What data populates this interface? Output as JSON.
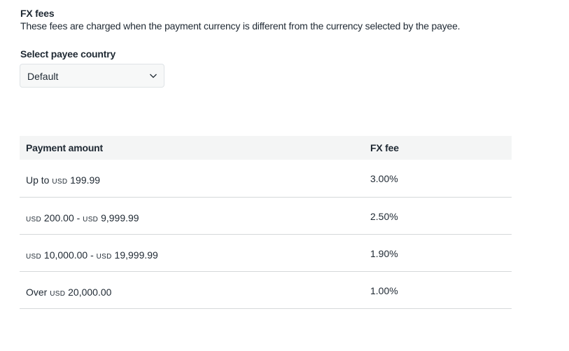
{
  "header": {
    "title": "FX fees",
    "description": "These fees are charged when the payment currency is different from the currency selected by the payee."
  },
  "country_select": {
    "label": "Select payee country",
    "value": "Default",
    "icon": "chevron-down-icon"
  },
  "table": {
    "columns": [
      "Payment amount",
      "FX fee"
    ],
    "rows": [
      {
        "amount": [
          {
            "t": "Up to "
          },
          {
            "t": "USD",
            "s": true
          },
          {
            "t": " 199.99"
          }
        ],
        "fee": "3.00%"
      },
      {
        "amount": [
          {
            "t": "USD",
            "s": true
          },
          {
            "t": " 200.00 - "
          },
          {
            "t": "USD",
            "s": true
          },
          {
            "t": " 9,999.99"
          }
        ],
        "fee": "2.50%"
      },
      {
        "amount": [
          {
            "t": "USD",
            "s": true
          },
          {
            "t": " 10,000.00 - "
          },
          {
            "t": "USD",
            "s": true
          },
          {
            "t": " 19,999.99"
          }
        ],
        "fee": "1.90%"
      },
      {
        "amount": [
          {
            "t": "Over "
          },
          {
            "t": "USD",
            "s": true
          },
          {
            "t": " 20,000.00"
          }
        ],
        "fee": "1.00%"
      }
    ]
  }
}
